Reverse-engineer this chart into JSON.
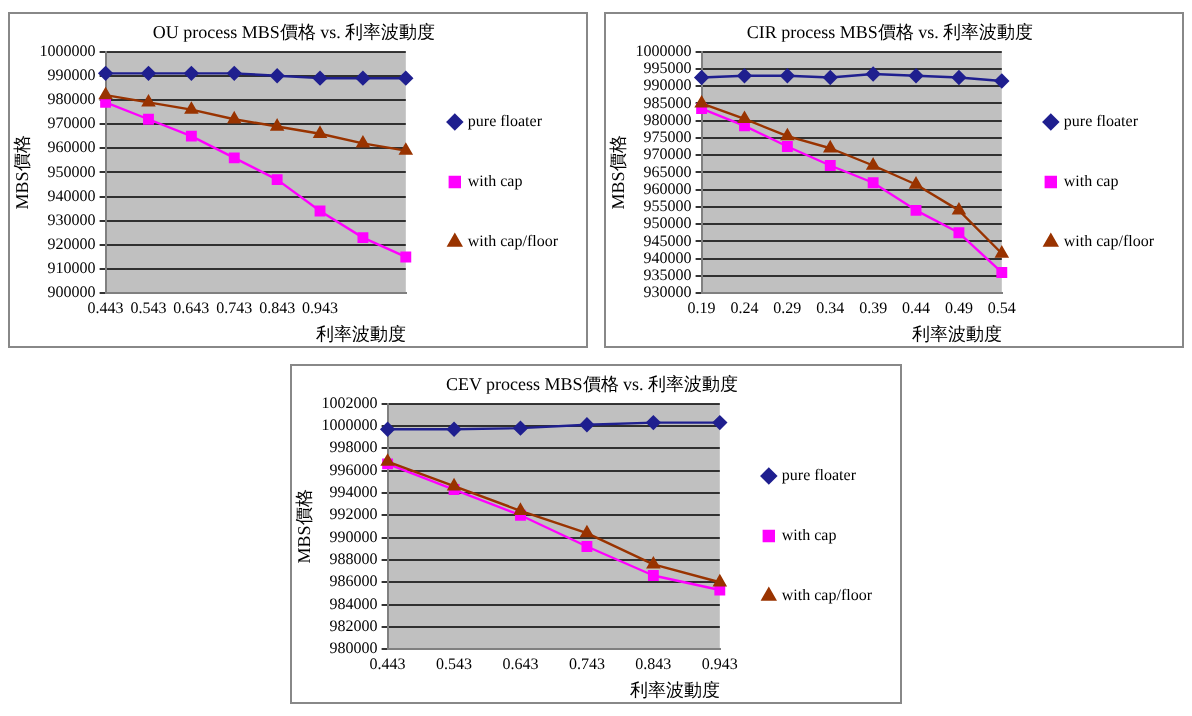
{
  "chart_data": [
    {
      "type": "line",
      "title": "OU process MBS價格 vs. 利率波動度",
      "xlabel": "利率波動度",
      "ylabel": "MBS價格",
      "categories": [
        "0.443",
        "0.543",
        "0.643",
        "0.743",
        "0.843",
        "0.943",
        null,
        null
      ],
      "ylim": [
        900000,
        1000000
      ],
      "yticks": [
        900000,
        910000,
        920000,
        930000,
        940000,
        950000,
        960000,
        970000,
        980000,
        990000,
        1000000
      ],
      "grid": "y",
      "legend": "right",
      "series": [
        {
          "name": "pure floater",
          "color": "#1f1f8f",
          "marker": "diamond",
          "values": [
            991000,
            991000,
            991000,
            991000,
            990000,
            989000,
            989000,
            989000
          ]
        },
        {
          "name": "with cap",
          "color": "#ff00ff",
          "marker": "square",
          "values": [
            979000,
            972000,
            965000,
            956000,
            947000,
            934000,
            923000,
            915000
          ]
        },
        {
          "name": "with cap/floor",
          "color": "#993300",
          "marker": "triangle",
          "values": [
            982000,
            979000,
            976000,
            972000,
            969000,
            966000,
            962000,
            959000
          ]
        }
      ]
    },
    {
      "type": "line",
      "title": "CIR process MBS價格 vs. 利率波動度",
      "xlabel": "利率波動度",
      "ylabel": "MBS價格",
      "categories": [
        "0.19",
        "0.24",
        "0.29",
        "0.34",
        "0.39",
        "0.44",
        "0.49",
        "0.54"
      ],
      "ylim": [
        930000,
        1000000
      ],
      "yticks": [
        930000,
        935000,
        940000,
        945000,
        950000,
        955000,
        960000,
        965000,
        970000,
        975000,
        980000,
        985000,
        990000,
        995000,
        1000000
      ],
      "grid": "y",
      "legend": "right",
      "series": [
        {
          "name": "pure floater",
          "color": "#1f1f8f",
          "marker": "diamond",
          "values": [
            992500,
            993000,
            993000,
            992500,
            993500,
            993000,
            992500,
            991500
          ]
        },
        {
          "name": "with cap",
          "color": "#ff00ff",
          "marker": "square",
          "values": [
            983500,
            978500,
            972500,
            967000,
            962000,
            954000,
            947500,
            936000
          ]
        },
        {
          "name": "with cap/floor",
          "color": "#993300",
          "marker": "triangle",
          "values": [
            985000,
            980500,
            975500,
            972000,
            967000,
            961500,
            954000,
            941500
          ]
        }
      ]
    },
    {
      "type": "line",
      "title": "CEV process MBS價格 vs. 利率波動度",
      "xlabel": "利率波動度",
      "ylabel": "MBS價格",
      "categories": [
        "0.443",
        "0.543",
        "0.643",
        "0.743",
        "0.843",
        "0.943"
      ],
      "ylim": [
        980000,
        1002000
      ],
      "yticks": [
        980000,
        982000,
        984000,
        986000,
        988000,
        990000,
        992000,
        994000,
        996000,
        998000,
        1000000,
        1002000
      ],
      "grid": "y",
      "legend": "right",
      "series": [
        {
          "name": "pure floater",
          "color": "#1f1f8f",
          "marker": "diamond",
          "values": [
            999700,
            999700,
            999800,
            1000100,
            1000300,
            1000300
          ]
        },
        {
          "name": "with cap",
          "color": "#ff00ff",
          "marker": "square",
          "values": [
            996600,
            994300,
            992000,
            989200,
            986600,
            985300
          ]
        },
        {
          "name": "with cap/floor",
          "color": "#993300",
          "marker": "triangle",
          "values": [
            996800,
            994600,
            992400,
            990400,
            987600,
            986000
          ]
        }
      ]
    }
  ]
}
